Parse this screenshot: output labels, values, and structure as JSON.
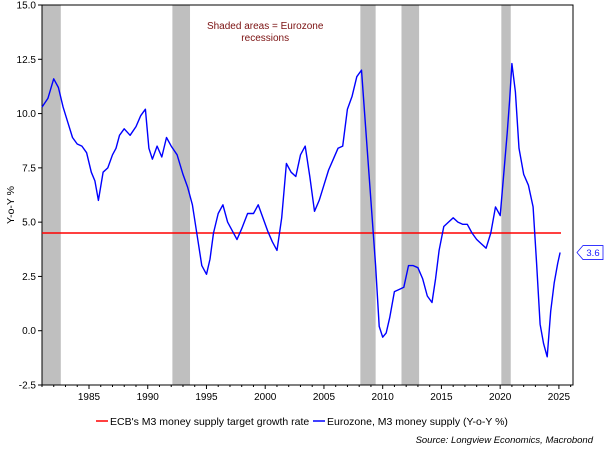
{
  "chart_data": {
    "type": "line",
    "title": "",
    "xlabel": "",
    "ylabel": "Y-o-Y %",
    "xlim": [
      1981.0,
      2026.2
    ],
    "ylim": [
      -2.5,
      15.0
    ],
    "grid": false,
    "legend_position": "bottom",
    "y_ticks": [
      -2.5,
      0.0,
      2.5,
      5.0,
      7.5,
      10.0,
      12.5,
      15.0
    ],
    "y_tick_labels": [
      "-2.5",
      "0.0",
      "2.5",
      "5.0",
      "7.5",
      "10.0",
      "12.5",
      "15.0"
    ],
    "x_ticks": [
      1985,
      1990,
      1995,
      2000,
      2005,
      2010,
      2015,
      2020,
      2025
    ],
    "x_tick_labels": [
      "1985",
      "1990",
      "1995",
      "2000",
      "2005",
      "2010",
      "2015",
      "2020",
      "2025"
    ],
    "recessions": [
      {
        "start": 1981.0,
        "end": 1982.6
      },
      {
        "start": 1992.1,
        "end": 1993.6
      },
      {
        "start": 2008.1,
        "end": 2009.4
      },
      {
        "start": 2011.6,
        "end": 2013.1
      },
      {
        "start": 2020.1,
        "end": 2020.9
      }
    ],
    "annotation": {
      "line1": "Shaded areas = Eurozone",
      "line2": "recessions",
      "x": 2000,
      "y": 13.9
    },
    "target": {
      "name": "ECB's M3 money supply target growth rate",
      "value": 4.5,
      "color": "#ff0000"
    },
    "series": [
      {
        "name": "Eurozone, M3 money supply (Y-o-Y %)",
        "color": "#0000ff",
        "last_value_label": "3.6",
        "x": [
          1981.0,
          1981.5,
          1982.0,
          1982.4,
          1982.8,
          1983.2,
          1983.6,
          1984.0,
          1984.4,
          1984.8,
          1985.2,
          1985.5,
          1985.8,
          1986.2,
          1986.6,
          1987.0,
          1987.3,
          1987.6,
          1988.0,
          1988.5,
          1989.0,
          1989.4,
          1989.8,
          1990.1,
          1990.4,
          1990.8,
          1991.2,
          1991.6,
          1992.0,
          1992.5,
          1993.0,
          1993.4,
          1993.8,
          1994.2,
          1994.6,
          1995.0,
          1995.3,
          1995.6,
          1996.0,
          1996.4,
          1996.8,
          1997.2,
          1997.6,
          1998.0,
          1998.5,
          1999.0,
          1999.4,
          1999.8,
          2000.2,
          2000.6,
          2001.0,
          2001.4,
          2001.8,
          2002.2,
          2002.6,
          2003.0,
          2003.4,
          2003.8,
          2004.2,
          2004.6,
          2005.0,
          2005.4,
          2005.8,
          2006.2,
          2006.6,
          2007.0,
          2007.4,
          2007.8,
          2008.2,
          2008.6,
          2009.0,
          2009.4,
          2009.7,
          2010.0,
          2010.3,
          2010.6,
          2011.0,
          2011.4,
          2011.8,
          2012.2,
          2012.6,
          2013.0,
          2013.4,
          2013.8,
          2014.2,
          2014.5,
          2014.8,
          2015.2,
          2015.6,
          2016.0,
          2016.4,
          2016.8,
          2017.2,
          2017.6,
          2018.0,
          2018.4,
          2018.8,
          2019.2,
          2019.6,
          2020.0,
          2020.3,
          2020.6,
          2020.8,
          2021.0,
          2021.3,
          2021.6,
          2022.0,
          2022.4,
          2022.8,
          2023.1,
          2023.4,
          2023.7,
          2024.0,
          2024.3,
          2024.6,
          2024.9,
          2025.1
        ],
        "y": [
          10.3,
          10.7,
          11.6,
          11.2,
          10.3,
          9.6,
          8.9,
          8.6,
          8.5,
          8.2,
          7.3,
          6.9,
          6.0,
          7.3,
          7.5,
          8.1,
          8.4,
          9.0,
          9.3,
          9.0,
          9.4,
          9.9,
          10.2,
          8.4,
          7.9,
          8.5,
          8.0,
          8.9,
          8.5,
          8.1,
          7.2,
          6.6,
          5.8,
          4.4,
          3.0,
          2.6,
          3.3,
          4.5,
          5.4,
          5.8,
          5.0,
          4.6,
          4.2,
          4.7,
          5.4,
          5.4,
          5.8,
          5.2,
          4.6,
          4.1,
          3.7,
          5.2,
          7.7,
          7.3,
          7.1,
          8.1,
          8.5,
          7.1,
          5.5,
          6.0,
          6.7,
          7.4,
          7.9,
          8.4,
          8.5,
          10.2,
          10.8,
          11.7,
          12.0,
          9.0,
          6.0,
          3.0,
          0.2,
          -0.3,
          -0.1,
          0.6,
          1.8,
          1.9,
          2.0,
          3.0,
          3.0,
          2.9,
          2.4,
          1.6,
          1.3,
          2.4,
          3.7,
          4.8,
          5.0,
          5.2,
          5.0,
          4.9,
          4.9,
          4.5,
          4.2,
          4.0,
          3.8,
          4.5,
          5.7,
          5.3,
          7.2,
          9.1,
          10.6,
          12.3,
          11.0,
          8.4,
          7.2,
          6.7,
          5.7,
          3.1,
          0.3,
          -0.6,
          -1.2,
          0.9,
          2.2,
          3.1,
          3.6
        ]
      }
    ]
  },
  "source_text": "Source: Longview Economics, Macrobond"
}
